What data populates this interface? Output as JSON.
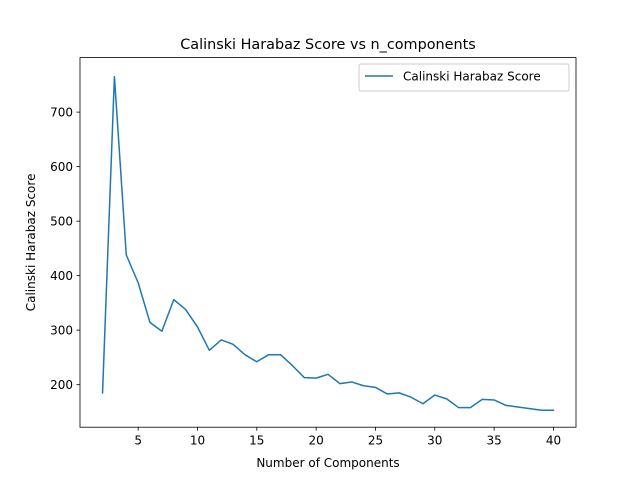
{
  "chart_data": {
    "type": "line",
    "title": "Calinski Harabaz Score vs n_components",
    "xlabel": "Number of Components",
    "ylabel": "Calinski Harabaz Score",
    "xlim": [
      0.1,
      41.9
    ],
    "ylim": [
      122,
      800
    ],
    "xticks": [
      5,
      10,
      15,
      20,
      25,
      30,
      35,
      40
    ],
    "yticks": [
      200,
      300,
      400,
      500,
      600,
      700
    ],
    "grid": false,
    "legend": "upper right",
    "series": [
      {
        "name": "Calinski Harabaz Score",
        "color": "#1f77b4",
        "x": [
          2,
          2.3,
          3,
          4,
          5,
          6,
          7,
          8,
          9,
          10,
          11,
          12,
          13,
          14,
          15,
          16,
          17,
          18,
          19,
          20,
          21,
          22,
          23,
          24,
          25,
          26,
          27,
          28,
          29,
          30,
          31,
          32,
          33,
          34,
          35,
          36,
          37,
          38,
          39,
          40
        ],
        "y": [
          185,
          360,
          765,
          438,
          387,
          314,
          298,
          356,
          338,
          306,
          263,
          282,
          274,
          255,
          242,
          255,
          255,
          235,
          213,
          212,
          219,
          202,
          205,
          198,
          195,
          183,
          185,
          177,
          165,
          181,
          174,
          158,
          158,
          173,
          172,
          162,
          159,
          156,
          153,
          153
        ]
      }
    ]
  }
}
